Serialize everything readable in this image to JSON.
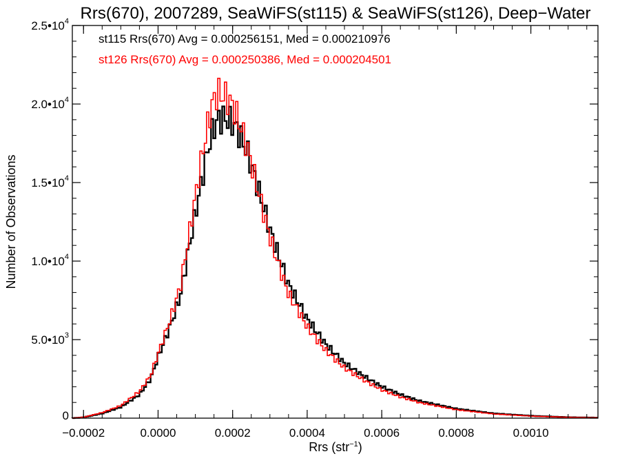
{
  "chart_data": {
    "type": "line",
    "title": "Rrs(670), 2007289, SeaWiFS(st115) & SeaWiFS(st126), Deep−Water",
    "xlabel": "Rrs (str",
    "xlabel_sup": "−1",
    "xlabel_close": ")",
    "ylabel": "Number of Observations",
    "xlim": [
      -0.00023,
      0.00118
    ],
    "ylim": [
      0,
      25000
    ],
    "x_ticks": [
      -0.0002,
      0.0,
      0.0002,
      0.0004,
      0.0006,
      0.0008,
      0.001
    ],
    "x_tick_labels": [
      "−0.0002",
      "0.0000",
      "0.0002",
      "0.0004",
      "0.0006",
      "0.0008",
      "0.0010"
    ],
    "y_ticks": [
      0,
      5000,
      10000,
      15000,
      20000,
      25000
    ],
    "y_tick_labels": [
      {
        "base": "0",
        "exp": ""
      },
      {
        "base": "5.0•10",
        "exp": "3"
      },
      {
        "base": "1.0•10",
        "exp": "4"
      },
      {
        "base": "1.5•10",
        "exp": "4"
      },
      {
        "base": "2.0•10",
        "exp": "4"
      },
      {
        "base": "2.5•10",
        "exp": "4"
      }
    ],
    "grid": false,
    "legend_position": "top-left",
    "series": [
      {
        "name": "st115 Rrs(670) Avg = 0.000256151, Med = 0.000210976",
        "color": "#000000",
        "x": [
          -0.00023,
          -0.0002,
          -0.00015,
          -0.0001,
          -5e-05,
          -2e-05,
          0.0,
          3e-05,
          6e-05,
          8e-05,
          0.0001,
          0.00012,
          0.00014,
          0.00015,
          0.00016,
          0.00018,
          0.0002,
          0.00022,
          0.00024,
          0.00026,
          0.00028,
          0.0003,
          0.00033,
          0.00035,
          0.00038,
          0.0004,
          0.00045,
          0.0005,
          0.00055,
          0.0006,
          0.00065,
          0.0007,
          0.0008,
          0.0009,
          0.001,
          0.0011,
          0.00118
        ],
        "values": [
          0,
          50,
          300,
          700,
          1500,
          2500,
          3900,
          5700,
          7800,
          10500,
          13000,
          15500,
          17800,
          18500,
          19000,
          19100,
          18800,
          18000,
          16900,
          15300,
          13700,
          12000,
          9900,
          8500,
          7200,
          6300,
          4700,
          3500,
          2700,
          2000,
          1500,
          1100,
          600,
          300,
          150,
          60,
          30
        ]
      },
      {
        "name": "st126 Rrs(670) Avg = 0.000250386, Med = 0.000204501",
        "color": "#ff0000",
        "x": [
          -0.00023,
          -0.0002,
          -0.00015,
          -0.0001,
          -5e-05,
          -2e-05,
          0.0,
          3e-05,
          6e-05,
          8e-05,
          0.0001,
          0.00012,
          0.00014,
          0.00015,
          0.00016,
          0.00018,
          0.0002,
          0.00022,
          0.00024,
          0.00026,
          0.00028,
          0.0003,
          0.00033,
          0.00035,
          0.00038,
          0.0004,
          0.00045,
          0.0005,
          0.00055,
          0.0006,
          0.00065,
          0.0007,
          0.0008,
          0.0009,
          0.001,
          0.0011,
          0.00118
        ],
        "values": [
          0,
          60,
          350,
          800,
          1700,
          2700,
          4100,
          6100,
          8400,
          11200,
          14100,
          17000,
          19500,
          20300,
          20700,
          20500,
          19900,
          18700,
          17200,
          15300,
          13400,
          11500,
          9300,
          7900,
          6700,
          5800,
          4300,
          3200,
          2450,
          1800,
          1350,
          1000,
          540,
          270,
          130,
          55,
          25
        ]
      }
    ]
  }
}
